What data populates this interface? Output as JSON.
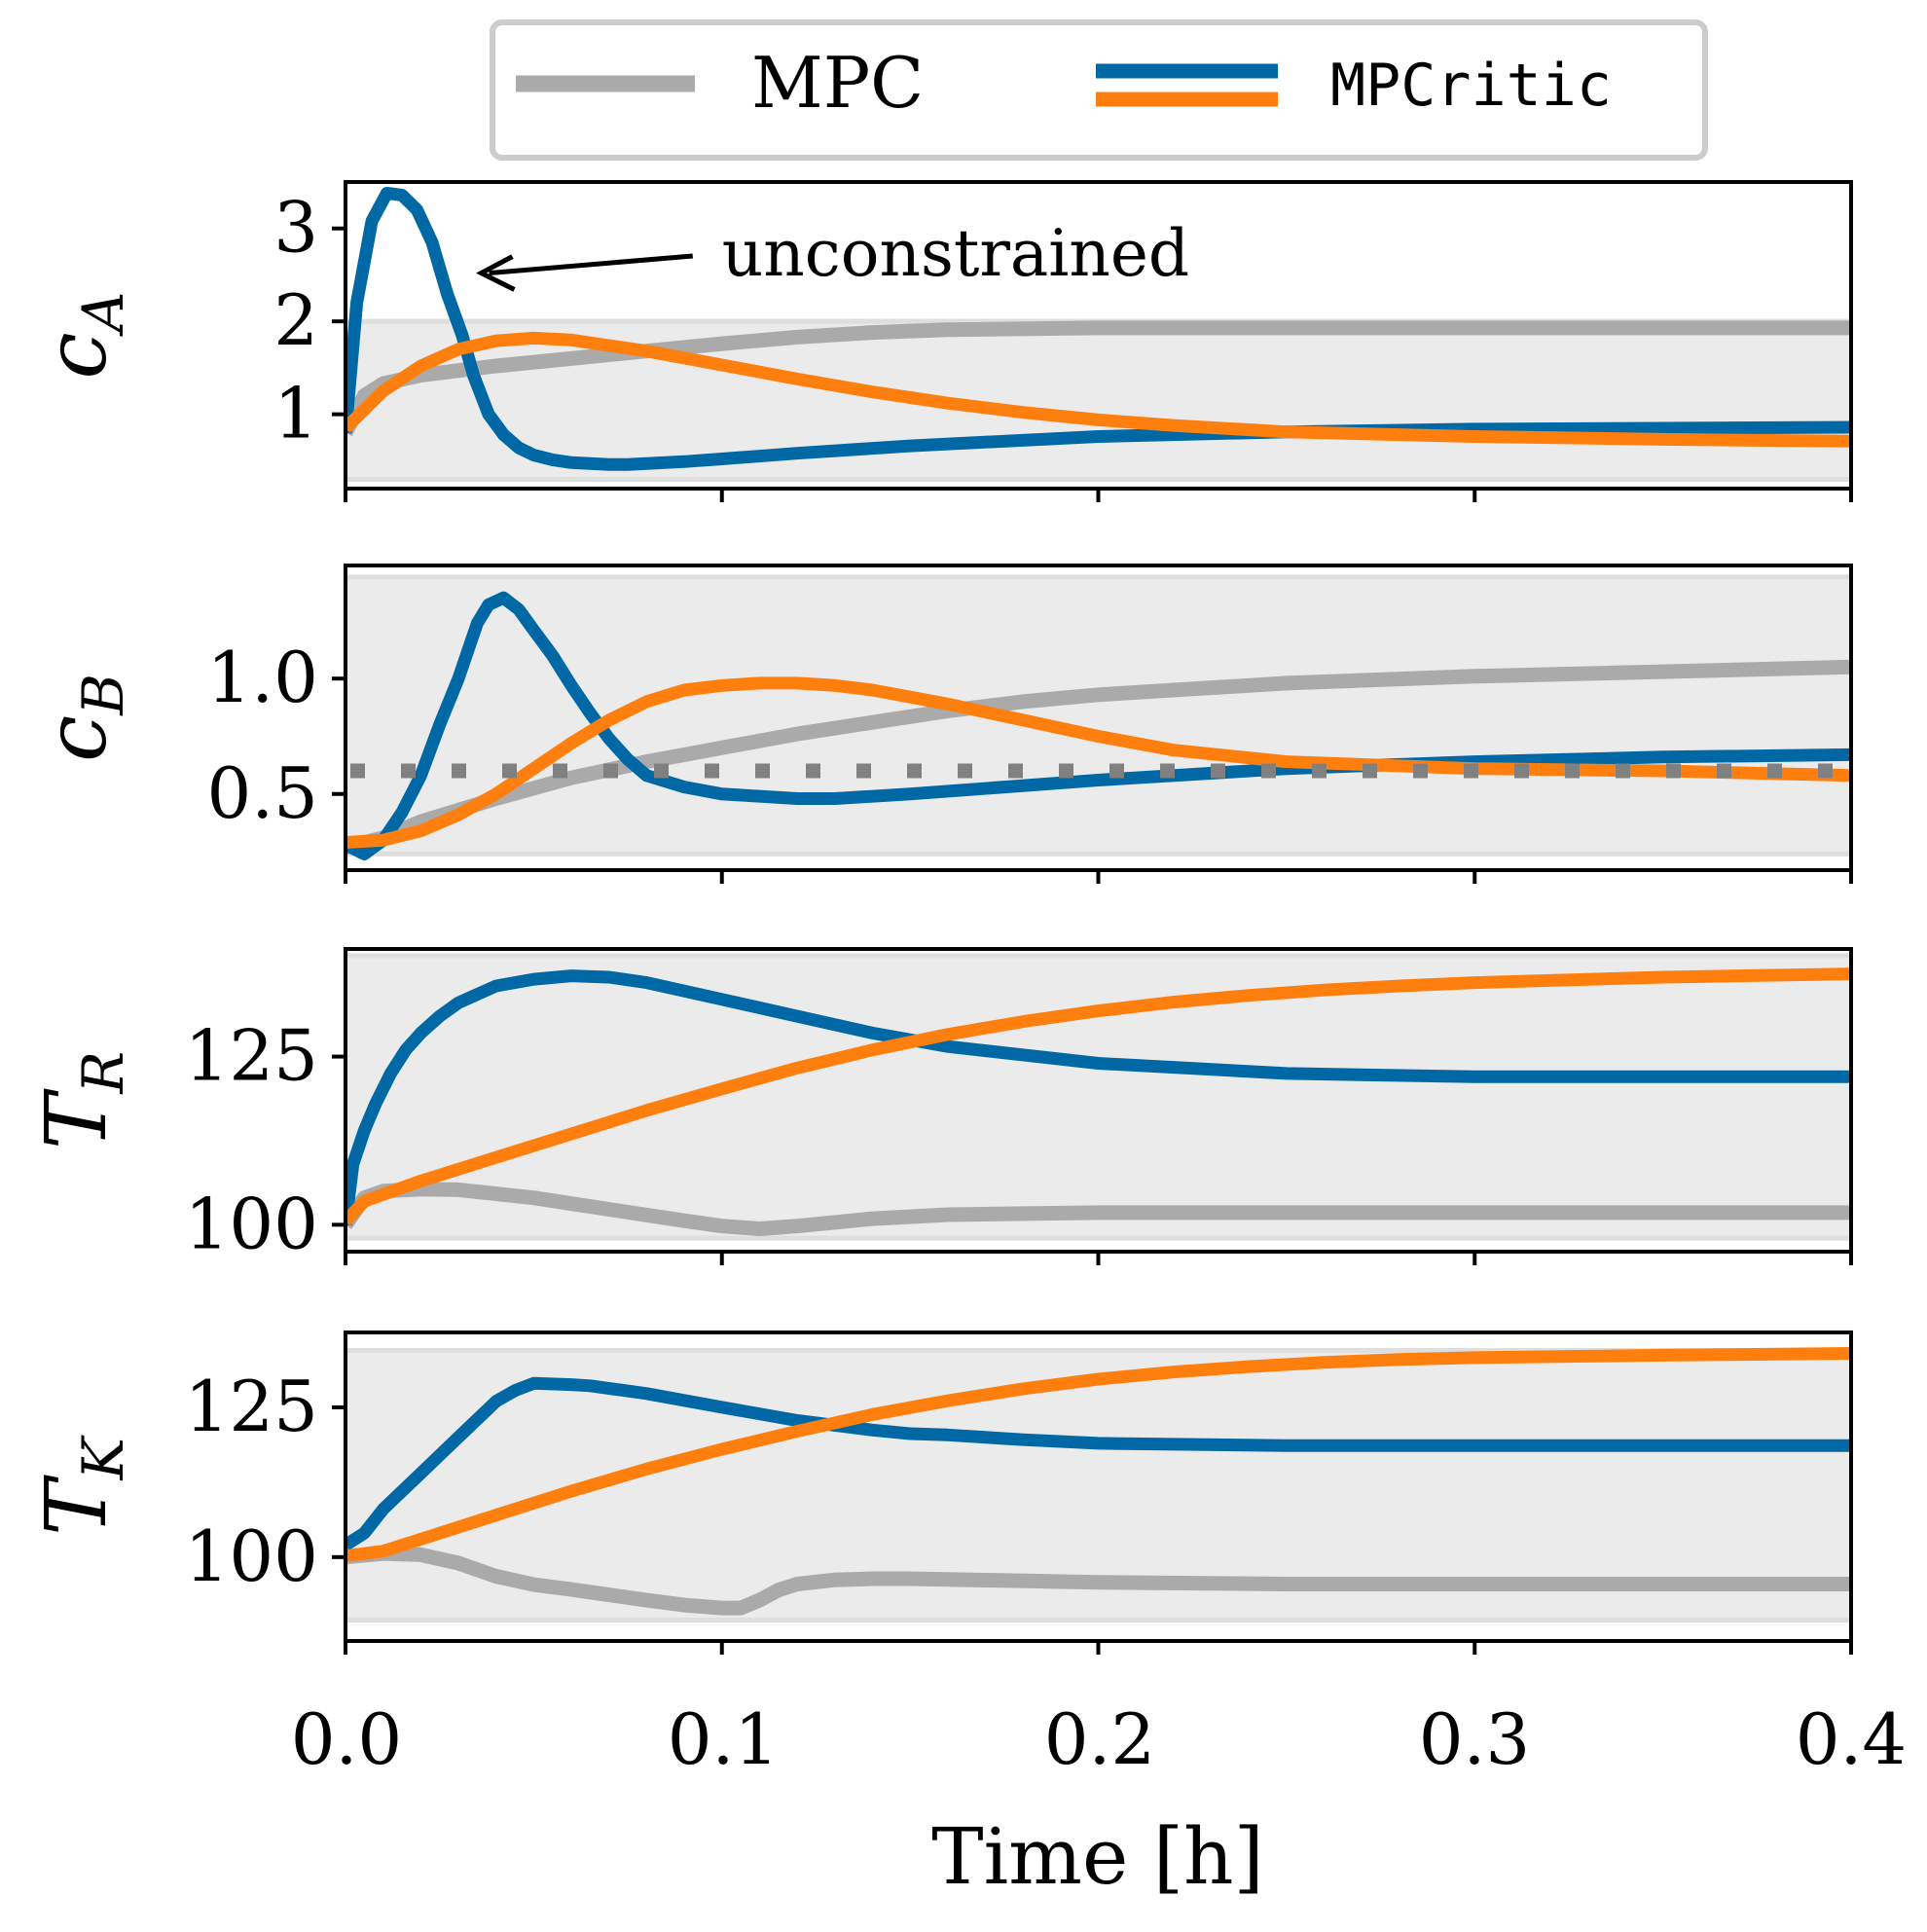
{
  "legend": {
    "entries": [
      {
        "label": "MPC",
        "color": "#aaaaaa",
        "font": "serif"
      },
      {
        "label": "MPCritic",
        "colors": [
          "#0068a5",
          "#ff7f0e"
        ],
        "font": "mono"
      }
    ]
  },
  "chart_data": [
    {
      "type": "line",
      "ylabel": "c",
      "ylabel_sub": "A",
      "xlim": [
        0.0,
        0.4
      ],
      "ylim": [
        0.2,
        3.5
      ],
      "yticks": [
        1,
        2,
        3
      ],
      "ytick_labels": [
        "1",
        "2",
        "3"
      ],
      "constraint_band": [
        0.3,
        2.0
      ],
      "annotation": {
        "text": "unconstrained",
        "target": [
          0.034,
          2.52
        ],
        "text_at": [
          0.1,
          2.62
        ]
      },
      "series": [
        {
          "name": "MPC",
          "color": "#aaaaaa",
          "x": [
            0,
            0.005,
            0.01,
            0.02,
            0.04,
            0.06,
            0.08,
            0.1,
            0.12,
            0.14,
            0.16,
            0.2,
            0.25,
            0.3,
            0.35,
            0.4
          ],
          "y": [
            0.8,
            1.2,
            1.33,
            1.42,
            1.52,
            1.6,
            1.68,
            1.76,
            1.83,
            1.88,
            1.91,
            1.93,
            1.93,
            1.93,
            1.93,
            1.93
          ]
        },
        {
          "name": "MPCritic",
          "color": "#0068a5",
          "x": [
            0,
            0.003,
            0.007,
            0.011,
            0.015,
            0.019,
            0.023,
            0.027,
            0.031,
            0.034,
            0.038,
            0.042,
            0.046,
            0.05,
            0.055,
            0.06,
            0.065,
            0.07,
            0.075,
            0.08,
            0.09,
            0.1,
            0.12,
            0.15,
            0.2,
            0.25,
            0.3,
            0.35,
            0.4
          ],
          "y": [
            0.8,
            2.2,
            3.08,
            3.38,
            3.36,
            3.2,
            2.85,
            2.3,
            1.85,
            1.42,
            1.0,
            0.78,
            0.64,
            0.56,
            0.51,
            0.48,
            0.47,
            0.46,
            0.46,
            0.47,
            0.49,
            0.52,
            0.58,
            0.66,
            0.76,
            0.81,
            0.84,
            0.85,
            0.86
          ]
        },
        {
          "name": "MPCritic",
          "color": "#ff7f0e",
          "x": [
            0,
            0.005,
            0.01,
            0.02,
            0.03,
            0.04,
            0.05,
            0.06,
            0.08,
            0.1,
            0.12,
            0.14,
            0.16,
            0.18,
            0.2,
            0.22,
            0.25,
            0.3,
            0.35,
            0.4
          ],
          "y": [
            0.85,
            1.05,
            1.25,
            1.52,
            1.7,
            1.79,
            1.82,
            1.8,
            1.68,
            1.53,
            1.38,
            1.24,
            1.12,
            1.02,
            0.94,
            0.88,
            0.81,
            0.76,
            0.73,
            0.71
          ]
        }
      ]
    },
    {
      "type": "line",
      "ylabel": "c",
      "ylabel_sub": "B",
      "xlim": [
        0.0,
        0.4
      ],
      "ylim": [
        0.17,
        1.49
      ],
      "yticks": [
        0.5,
        1.0
      ],
      "ytick_labels": [
        "0.5",
        "1.0"
      ],
      "constraint_band": [
        0.24,
        1.44
      ],
      "setpoint": 0.6,
      "series": [
        {
          "name": "MPC",
          "color": "#aaaaaa",
          "x": [
            0,
            0.01,
            0.02,
            0.04,
            0.06,
            0.08,
            0.1,
            0.12,
            0.14,
            0.16,
            0.18,
            0.2,
            0.25,
            0.3,
            0.35,
            0.4
          ],
          "y": [
            0.27,
            0.31,
            0.38,
            0.48,
            0.57,
            0.64,
            0.7,
            0.76,
            0.81,
            0.86,
            0.9,
            0.93,
            0.98,
            1.01,
            1.03,
            1.05
          ]
        },
        {
          "name": "MPCritic",
          "color": "#0068a5",
          "x": [
            0,
            0.005,
            0.01,
            0.015,
            0.02,
            0.025,
            0.03,
            0.035,
            0.038,
            0.042,
            0.046,
            0.05,
            0.055,
            0.06,
            0.065,
            0.07,
            0.075,
            0.08,
            0.09,
            0.1,
            0.11,
            0.12,
            0.13,
            0.15,
            0.2,
            0.25,
            0.3,
            0.35,
            0.4
          ],
          "y": [
            0.28,
            0.24,
            0.3,
            0.42,
            0.58,
            0.8,
            1.0,
            1.24,
            1.32,
            1.35,
            1.3,
            1.21,
            1.1,
            0.97,
            0.85,
            0.74,
            0.65,
            0.58,
            0.53,
            0.5,
            0.49,
            0.48,
            0.48,
            0.5,
            0.56,
            0.61,
            0.64,
            0.66,
            0.67
          ]
        },
        {
          "name": "MPCritic",
          "color": "#ff7f0e",
          "x": [
            0,
            0.01,
            0.02,
            0.03,
            0.04,
            0.05,
            0.06,
            0.07,
            0.08,
            0.09,
            0.1,
            0.11,
            0.12,
            0.13,
            0.14,
            0.16,
            0.18,
            0.2,
            0.22,
            0.25,
            0.3,
            0.35,
            0.4
          ],
          "y": [
            0.29,
            0.3,
            0.34,
            0.41,
            0.5,
            0.61,
            0.72,
            0.82,
            0.9,
            0.95,
            0.97,
            0.98,
            0.98,
            0.97,
            0.95,
            0.89,
            0.82,
            0.75,
            0.69,
            0.64,
            0.61,
            0.6,
            0.58
          ]
        }
      ]
    },
    {
      "type": "line",
      "ylabel": "T",
      "ylabel_sub": "R",
      "xlim": [
        0.0,
        0.4
      ],
      "ylim": [
        96,
        141
      ],
      "yticks": [
        100,
        125
      ],
      "ytick_labels": [
        "100",
        "125"
      ],
      "constraint_band": [
        98,
        140
      ],
      "series": [
        {
          "name": "MPC",
          "color": "#aaaaaa",
          "x": [
            0,
            0.005,
            0.01,
            0.02,
            0.03,
            0.05,
            0.07,
            0.09,
            0.1,
            0.11,
            0.12,
            0.14,
            0.16,
            0.2,
            0.25,
            0.3,
            0.35,
            0.4
          ],
          "y": [
            100,
            104,
            105,
            105.3,
            105.2,
            104,
            102.3,
            100.6,
            99.8,
            99.4,
            99.8,
            100.9,
            101.5,
            101.8,
            101.8,
            101.8,
            101.8,
            101.8
          ]
        },
        {
          "name": "MPCritic",
          "color": "#0068a5",
          "x": [
            0,
            0.002,
            0.005,
            0.008,
            0.012,
            0.016,
            0.02,
            0.025,
            0.03,
            0.04,
            0.05,
            0.06,
            0.07,
            0.08,
            0.1,
            0.12,
            0.14,
            0.16,
            0.2,
            0.25,
            0.3,
            0.35,
            0.4
          ],
          "y": [
            100,
            109,
            114,
            118,
            122.5,
            126,
            128.5,
            131,
            133,
            135.5,
            136.5,
            137,
            136.8,
            136,
            133.5,
            131,
            128.5,
            126.5,
            124,
            122.5,
            122,
            122,
            122
          ]
        },
        {
          "name": "MPCritic",
          "color": "#ff7f0e",
          "x": [
            0,
            0.005,
            0.01,
            0.02,
            0.04,
            0.06,
            0.08,
            0.1,
            0.12,
            0.14,
            0.16,
            0.18,
            0.2,
            0.22,
            0.24,
            0.26,
            0.28,
            0.3,
            0.35,
            0.4
          ],
          "y": [
            100.5,
            103.5,
            104.5,
            106.5,
            110,
            113.5,
            117,
            120.2,
            123.3,
            126,
            128.3,
            130.2,
            131.8,
            133.1,
            134.1,
            134.9,
            135.5,
            136,
            136.8,
            137.3
          ]
        }
      ]
    },
    {
      "type": "line",
      "ylabel": "T",
      "ylabel_sub": "K",
      "xlim": [
        0.0,
        0.4
      ],
      "ylim": [
        86,
        137.5
      ],
      "yticks": [
        100,
        125
      ],
      "ytick_labels": [
        "100",
        "125"
      ],
      "constraint_band": [
        89.5,
        134.5
      ],
      "series": [
        {
          "name": "MPC",
          "color": "#aaaaaa",
          "x": [
            0,
            0.01,
            0.02,
            0.03,
            0.04,
            0.05,
            0.06,
            0.07,
            0.08,
            0.09,
            0.1,
            0.105,
            0.11,
            0.115,
            0.12,
            0.13,
            0.14,
            0.15,
            0.2,
            0.25,
            0.3,
            0.35,
            0.4
          ],
          "y": [
            100,
            100.6,
            100.4,
            99,
            96.8,
            95.4,
            94.6,
            93.7,
            92.8,
            92,
            91.5,
            91.5,
            92.8,
            94.5,
            95.5,
            96.2,
            96.4,
            96.4,
            95.8,
            95.5,
            95.5,
            95.5,
            95.5
          ]
        },
        {
          "name": "MPCritic",
          "color": "#0068a5",
          "x": [
            0,
            0.005,
            0.01,
            0.02,
            0.03,
            0.04,
            0.045,
            0.05,
            0.06,
            0.065,
            0.08,
            0.1,
            0.12,
            0.14,
            0.15,
            0.16,
            0.18,
            0.2,
            0.25,
            0.3,
            0.35,
            0.4
          ],
          "y": [
            102,
            104,
            108,
            114,
            120,
            126,
            127.8,
            129,
            128.8,
            128.6,
            127.3,
            125,
            122.8,
            121.2,
            120.6,
            120.4,
            119.6,
            119,
            118.6,
            118.6,
            118.6,
            118.6
          ]
        },
        {
          "name": "MPCritic",
          "color": "#ff7f0e",
          "x": [
            0,
            0.01,
            0.02,
            0.04,
            0.06,
            0.08,
            0.1,
            0.12,
            0.14,
            0.16,
            0.18,
            0.2,
            0.22,
            0.24,
            0.26,
            0.28,
            0.3,
            0.35,
            0.4
          ],
          "y": [
            100.2,
            101,
            103,
            107,
            111,
            114.7,
            118,
            121,
            123.8,
            126.1,
            128.1,
            129.7,
            130.9,
            131.8,
            132.5,
            133,
            133.3,
            133.7,
            134
          ]
        }
      ]
    }
  ],
  "xaxis": {
    "label": "Time [h]",
    "ticks": [
      0.0,
      0.1,
      0.2,
      0.3,
      0.4
    ],
    "tick_labels": [
      "0.0",
      "0.1",
      "0.2",
      "0.3",
      "0.4"
    ]
  }
}
